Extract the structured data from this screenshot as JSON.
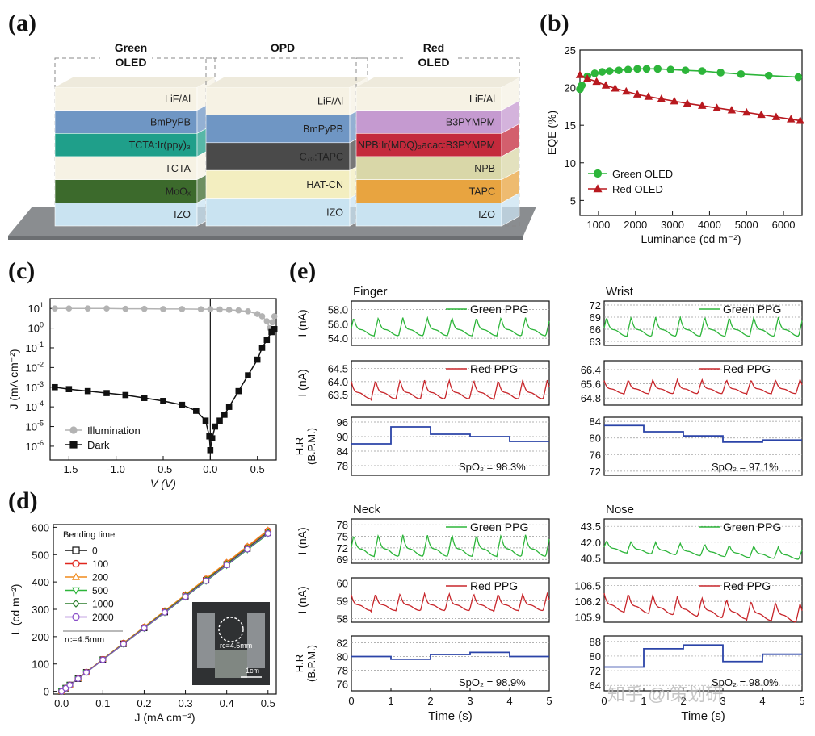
{
  "panels": {
    "a": {
      "label": "(a)",
      "stacks": [
        {
          "title": [
            "Green",
            "OLED"
          ],
          "layers": [
            "LiF/Al",
            "BmPyPB",
            "TCTA:Ir(ppy)₃",
            "TCTA",
            "MoOₓ",
            "IZO"
          ],
          "colors": [
            "#f6f2e4",
            "#6f96c4",
            "#1f9f8a",
            "#f6f2e4",
            "#3c6a2c",
            "#c9e3f1"
          ]
        },
        {
          "title": [
            "OPD"
          ],
          "layers": [
            "LiF/Al",
            "BmPyPB",
            "C₇₀:TAPC",
            "HAT-CN",
            "IZO"
          ],
          "colors": [
            "#f6f2e4",
            "#6f96c4",
            "#4a4a4a",
            "#f3eec0",
            "#c9e3f1"
          ]
        },
        {
          "title": [
            "Red",
            "OLED"
          ],
          "layers": [
            "LiF/Al",
            "B3PYMPM",
            "NPB:Ir(MDQ)₂acac:B3PYMPM",
            "NPB",
            "TAPC",
            "IZO"
          ],
          "colors": [
            "#f6f2e4",
            "#c59ad0",
            "#c42a3c",
            "#d9d7a8",
            "#e8a440",
            "#c9e3f1"
          ]
        }
      ]
    },
    "b": {
      "label": "(b)",
      "chart_data": {
        "type": "line",
        "xlabel": "Luminance (cd m⁻²)",
        "ylabel": "EQE (%)",
        "xlim": [
          500,
          6500
        ],
        "ylim": [
          3,
          25
        ],
        "xticks": [
          1000,
          2000,
          3000,
          4000,
          5000,
          6000
        ],
        "yticks": [
          5,
          10,
          15,
          20,
          25
        ],
        "series": [
          {
            "name": "Green OLED",
            "color": "#2db53a",
            "marker": "circle",
            "x": [
              500,
              550,
              700,
              900,
              1100,
              1300,
              1550,
              1800,
              2050,
              2300,
              2600,
              2950,
              3350,
              3800,
              4300,
              4850,
              5600,
              6400
            ],
            "y": [
              19.8,
              20.3,
              21.5,
              21.9,
              22.1,
              22.2,
              22.3,
              22.4,
              22.5,
              22.5,
              22.5,
              22.4,
              22.3,
              22.2,
              22.0,
              21.8,
              21.6,
              21.4
            ]
          },
          {
            "name": "Red OLED",
            "color": "#b8191f",
            "marker": "triangle",
            "x": [
              500,
              700,
              950,
              1200,
              1450,
              1750,
              2050,
              2350,
              2700,
              3050,
              3400,
              3800,
              4200,
              4600,
              5000,
              5400,
              5800,
              6200,
              6450
            ],
            "y": [
              21.7,
              21.2,
              20.8,
              20.3,
              19.9,
              19.5,
              19.1,
              18.8,
              18.5,
              18.2,
              17.9,
              17.6,
              17.3,
              17.0,
              16.7,
              16.4,
              16.1,
              15.8,
              15.6
            ]
          }
        ]
      }
    },
    "c": {
      "label": "(c)",
      "chart_data": {
        "type": "line",
        "xlabel": "V (V)",
        "ylabel": "J (mA cm⁻²)",
        "xlim": [
          -1.7,
          0.7
        ],
        "ylim_log10": [
          -6.7,
          1.5
        ],
        "yscale": "log",
        "xticks": [
          "-1.5",
          "-1.0",
          "-0.5",
          "0.0",
          "0.5"
        ],
        "ytick_exponents": [
          1,
          0,
          -1,
          -2,
          -3,
          -4,
          -5,
          -6
        ],
        "series": [
          {
            "name": "Illumination",
            "color": "#b3b3b3",
            "marker": "circle",
            "x": [
              -1.65,
              -1.5,
              -1.3,
              -1.1,
              -0.9,
              -0.7,
              -0.5,
              -0.3,
              -0.1,
              0.0,
              0.1,
              0.2,
              0.3,
              0.4,
              0.5,
              0.55,
              0.6,
              0.63,
              0.66,
              0.68
            ],
            "log10_y": [
              1.0,
              1.0,
              1.0,
              1.0,
              0.98,
              0.98,
              0.97,
              0.97,
              0.96,
              0.96,
              0.95,
              0.93,
              0.9,
              0.85,
              0.72,
              0.6,
              0.35,
              0.0,
              0.3,
              0.6
            ]
          },
          {
            "name": "Dark",
            "color": "#111111",
            "marker": "square",
            "x": [
              -1.65,
              -1.5,
              -1.3,
              -1.1,
              -0.9,
              -0.7,
              -0.5,
              -0.3,
              -0.15,
              -0.05,
              -0.01,
              0.0,
              0.02,
              0.05,
              0.1,
              0.15,
              0.2,
              0.3,
              0.4,
              0.5,
              0.55,
              0.6,
              0.65,
              0.68
            ],
            "log10_y": [
              -3.0,
              -3.1,
              -3.2,
              -3.3,
              -3.4,
              -3.55,
              -3.7,
              -3.9,
              -4.2,
              -4.7,
              -5.5,
              -6.2,
              -5.6,
              -5.0,
              -4.7,
              -4.4,
              -4.0,
              -3.2,
              -2.4,
              -1.6,
              -1.0,
              -0.6,
              -0.2,
              -0.05
            ]
          }
        ]
      }
    },
    "d": {
      "label": "(d)",
      "chart_data": {
        "type": "line",
        "xlabel": "J (mA cm⁻²)",
        "ylabel": "L (cd m⁻²)",
        "xlim": [
          -0.02,
          0.52
        ],
        "ylim": [
          -10,
          610
        ],
        "xticks": [
          "0.0",
          "0.1",
          "0.2",
          "0.3",
          "0.4",
          "0.5"
        ],
        "yticks": [
          "0",
          "100",
          "200",
          "300",
          "400",
          "500",
          "600"
        ],
        "legend_title": "Bending time",
        "legend_note": "rc=4.5mm",
        "inset_labels": [
          "rc=4.5mm",
          "1cm"
        ],
        "series": [
          {
            "name": "0",
            "color": "#111111",
            "marker": "square",
            "slope": 1160
          },
          {
            "name": "100",
            "color": "#e0261d",
            "marker": "circle",
            "slope": 1175
          },
          {
            "name": "200",
            "color": "#f08a1c",
            "marker": "triangle",
            "slope": 1180
          },
          {
            "name": "500",
            "color": "#2db53a",
            "marker": "triangle-down",
            "slope": 1150
          },
          {
            "name": "1000",
            "color": "#2a7d2a",
            "marker": "diamond",
            "slope": 1165
          },
          {
            "name": "2000",
            "color": "#8a4fc8",
            "marker": "circle",
            "slope": 1155
          }
        ],
        "x_points": [
          0.0,
          0.01,
          0.02,
          0.04,
          0.06,
          0.1,
          0.15,
          0.2,
          0.25,
          0.3,
          0.35,
          0.4,
          0.45,
          0.5
        ]
      }
    },
    "e": {
      "label": "(e)",
      "xlabel": "Time (s)",
      "xticks": [
        "0",
        "1",
        "2",
        "3",
        "4",
        "5"
      ],
      "columns": [
        {
          "sites": [
            {
              "title": "Finger",
              "green": {
                "ylabel": "I (nA)",
                "legend": "Green PPG",
                "ticks": [
                  "58.0",
                  "56.0",
                  "54.0"
                ],
                "range": [
                  53.0,
                  59.2
                ],
                "base": 54.2,
                "amp": 3.2
              },
              "red": {
                "ylabel": "I (nA)",
                "legend": "Red PPG",
                "ticks": [
                  "64.5",
                  "64.0",
                  "63.5"
                ],
                "range": [
                  63.1,
                  64.8
                ],
                "base": 63.3,
                "amp": 0.9
              },
              "hr": {
                "ylabel": "H.R (B.P.M.)",
                "ticks": [
                  "96",
                  "90",
                  "84",
                  "78"
                ],
                "range": [
                  74,
                  98
                ],
                "spo2": "SpO₂ = 98.3%",
                "steps": [
                  [
                    0,
                    87
                  ],
                  [
                    1,
                    94
                  ],
                  [
                    2,
                    91
                  ],
                  [
                    3,
                    90
                  ],
                  [
                    4,
                    88
                  ],
                  [
                    5,
                    88
                  ]
                ]
              }
            },
            {
              "title": "Neck",
              "green": {
                "ylabel": "I (nA)",
                "legend": "Green PPG",
                "ticks": [
                  "78",
                  "75",
                  "72",
                  "69"
                ],
                "range": [
                  68,
                  79.5
                ],
                "base": 69.5,
                "amp": 7
              },
              "red": {
                "ylabel": "I (nA)",
                "legend": "Red PPG",
                "ticks": [
                  "60",
                  "59",
                  "58"
                ],
                "range": [
                  57.8,
                  60.3
                ],
                "base": 58.4,
                "amp": 1.2
              },
              "hr": {
                "ylabel": "H.R (B.P.M.)",
                "ticks": [
                  "82",
                  "80",
                  "78",
                  "76"
                ],
                "range": [
                  75,
                  83
                ],
                "spo2": "SpO₂ = 98.9%",
                "steps": [
                  [
                    0,
                    80
                  ],
                  [
                    1,
                    79.6
                  ],
                  [
                    2,
                    80.3
                  ],
                  [
                    3,
                    80.6
                  ],
                  [
                    4,
                    80
                  ],
                  [
                    5,
                    80
                  ]
                ]
              }
            }
          ]
        },
        {
          "sites": [
            {
              "title": "Wrist",
              "green": {
                "ylabel": "",
                "legend": "Green PPG",
                "ticks": [
                  "72",
                  "69",
                  "66",
                  "63"
                ],
                "range": [
                  62,
                  73
                ],
                "base": 64,
                "amp": 6
              },
              "red": {
                "ylabel": "",
                "legend": "Red PPG",
                "ticks": [
                  "66.4",
                  "65.6",
                  "64.8"
                ],
                "range": [
                  64.4,
                  66.9
                ],
                "base": 65.0,
                "amp": 1.0
              },
              "hr": {
                "ylabel": "",
                "ticks": [
                  "84",
                  "80",
                  "76",
                  "72"
                ],
                "range": [
                  71,
                  85
                ],
                "spo2": "SpO₂ = 97.1%",
                "steps": [
                  [
                    0,
                    83
                  ],
                  [
                    1,
                    81.5
                  ],
                  [
                    2,
                    80.5
                  ],
                  [
                    3,
                    79
                  ],
                  [
                    4,
                    79.5
                  ],
                  [
                    5,
                    79.5
                  ]
                ]
              }
            },
            {
              "title": "Nose",
              "green": {
                "ylabel": "",
                "legend": "Green PPG",
                "ticks": [
                  "43.5",
                  "42.0",
                  "40.5"
                ],
                "range": [
                  40.0,
                  44.2
                ],
                "base": 41,
                "amp": 1.4
              },
              "red": {
                "ylabel": "",
                "legend": "Red PPG",
                "ticks": [
                  "106.5",
                  "106.2",
                  "105.9"
                ],
                "range": [
                  105.8,
                  106.65
                ],
                "base": 106.0,
                "amp": 0.45
              },
              "hr": {
                "ylabel": "",
                "ticks": [
                  "88",
                  "80",
                  "72",
                  "64"
                ],
                "range": [
                  61,
                  91
                ],
                "spo2": "SpO₂ = 98.0%",
                "steps": [
                  [
                    0,
                    74
                  ],
                  [
                    1,
                    84
                  ],
                  [
                    2,
                    86
                  ],
                  [
                    3,
                    77
                  ],
                  [
                    4,
                    81
                  ],
                  [
                    5,
                    81
                  ]
                ]
              }
            }
          ]
        }
      ]
    }
  },
  "watermark": "知乎 @i策划研"
}
